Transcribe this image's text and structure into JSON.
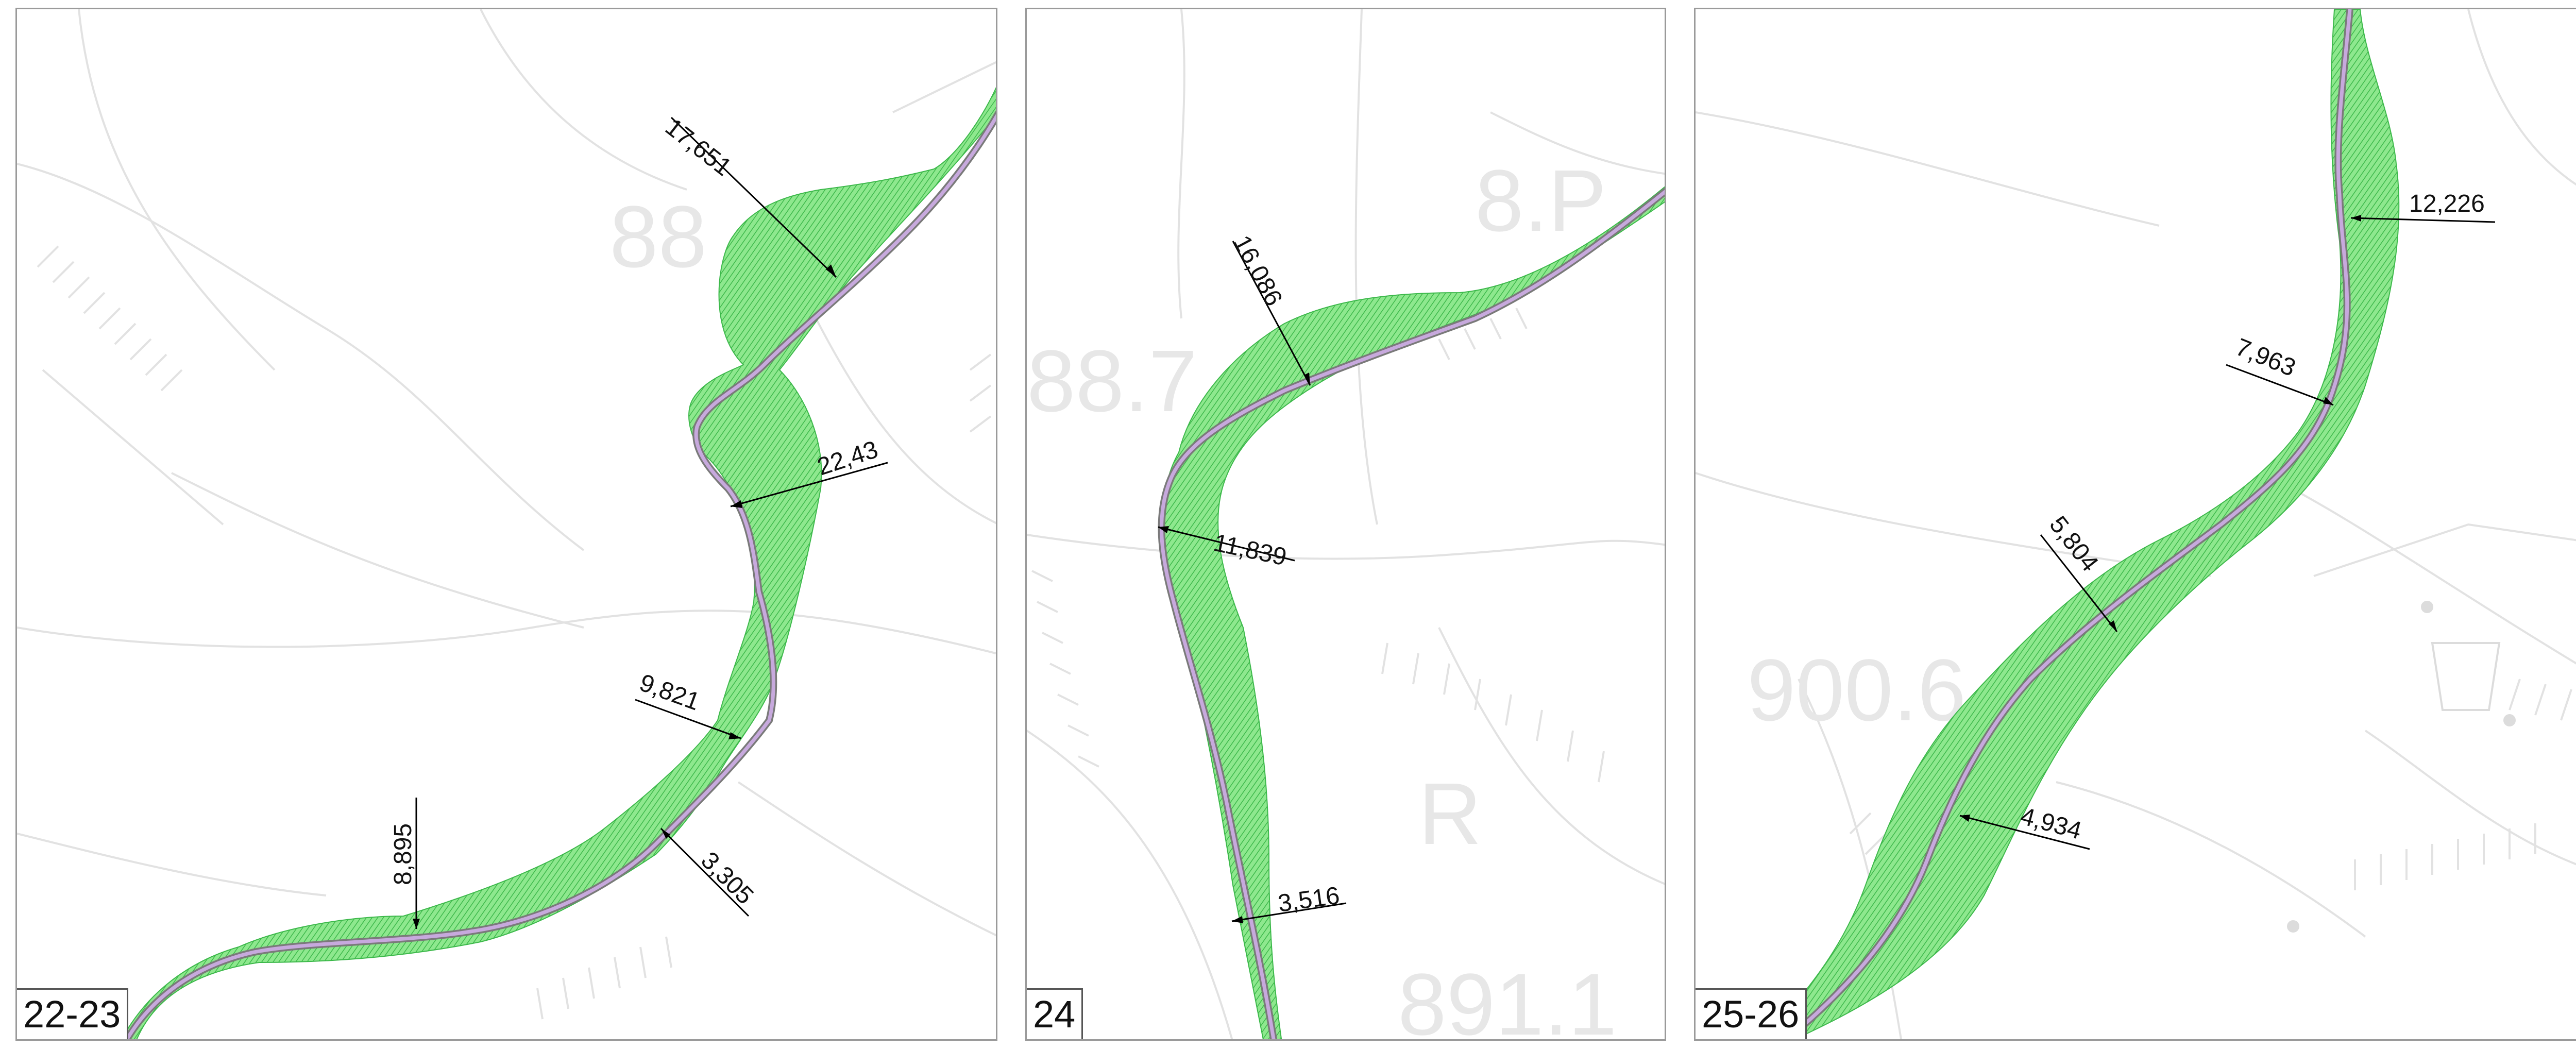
{
  "colors": {
    "zone_fill": "#8ee88e",
    "zone_hatch": "#3cb84a",
    "road_casing": "#7a7a7a",
    "road_center": "#c7a9dd",
    "background_lines": "#e2e2e2",
    "dimension_line": "#000000"
  },
  "panels": [
    {
      "label": "22-23",
      "background_labels": [
        "88"
      ],
      "measurements": [
        {
          "value": "17,651"
        },
        {
          "value": "22,43"
        },
        {
          "value": "9,821"
        },
        {
          "value": "8,895"
        },
        {
          "value": "3,305"
        }
      ]
    },
    {
      "label": "24",
      "background_labels": [
        "88.7",
        "8.P",
        "R",
        "891.1"
      ],
      "measurements": [
        {
          "value": "16,086"
        },
        {
          "value": "11,839"
        },
        {
          "value": "3,516"
        }
      ]
    },
    {
      "label": "25-26",
      "background_labels": [
        "900.6"
      ],
      "measurements": [
        {
          "value": "12,226"
        },
        {
          "value": "7,963"
        },
        {
          "value": "5,804"
        },
        {
          "value": "4,934"
        }
      ]
    }
  ]
}
